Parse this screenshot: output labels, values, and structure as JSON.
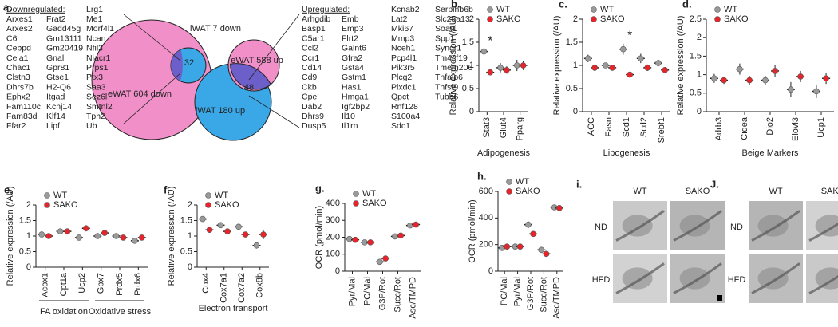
{
  "gene_lists": {
    "label": "a.",
    "downregulated": {
      "heading": "Downregulated:",
      "columns": [
        [
          "Arxes1",
          "Arxes2",
          "C6",
          "Cebpd",
          "Cela1",
          "Chac1",
          "Clstn3",
          "Dhrs7b",
          "Ephx2",
          "Fam110c",
          "Fam83d",
          "Ffar2"
        ],
        [
          "Frat2",
          "Gadd45g",
          "Gm13111",
          "Gm20419",
          "Gnal",
          "Gpr81",
          "Gtse1",
          "H2-Q6",
          "Itgad",
          "Kcnj14",
          "Klf14",
          "Lipf"
        ],
        [
          "Lrg1",
          "Me1",
          "Morf4l1",
          "Ncan",
          "Nfil3",
          "Niacr1",
          "Prps1",
          "Ptx3",
          "Saa3",
          "Sez6l",
          "Smtnl2",
          "Tph2",
          "Ub"
        ]
      ]
    },
    "upregulated": {
      "heading": "Upregulated:",
      "columns": [
        [
          "Arhgdib",
          "Basp1",
          "C5ar1",
          "Ccl2",
          "Ccr1",
          "Cd14",
          "Cd9",
          "Ckb",
          "Cpe",
          "Dab2",
          "Dhrs9",
          "Dusp5"
        ],
        [
          "Emb",
          "Emp3",
          "Flrt2",
          "Galnt6",
          "Gfra2",
          "Gsta4",
          "Gstm1",
          "Has1",
          "Hmga1",
          "Igf2bp2",
          "Il10",
          "Il1rn"
        ],
        [
          "Kcnab2",
          "Lat2",
          "Mki67",
          "Mmp3",
          "Nceh1",
          "Pcp4l1",
          "Pik3r5",
          "Plcg2",
          "Plxdc1",
          "Qpct",
          "Rnf128",
          "S100a4",
          "Sdc1"
        ],
        [
          "Serpinb6b",
          "Slc25a13",
          "Soat1",
          "Spp1",
          "Syngr1",
          "Tm4sf19",
          "Tmem206",
          "Tnfaip6",
          "Tnfsf9",
          "Tubb6"
        ]
      ]
    }
  },
  "venn": {
    "down": {
      "big": "eWAT 604 down",
      "small": "iWAT 7 down",
      "overlap": 32
    },
    "up": {
      "small": "eWAT 588 up",
      "big": "iWAT 180 up",
      "overlap": 48
    }
  },
  "chart_data": [
    {
      "type": "dot",
      "label": "b.",
      "ylabel": "Relative expression (/AU)",
      "xlabel": "Adipogenesis",
      "categories": [
        "Stat3",
        "Glut4",
        "Pparg"
      ],
      "ylim": [
        0,
        2
      ],
      "yticks": [
        0,
        0.5,
        1,
        1.5,
        2
      ],
      "significance": [
        "*",
        null,
        null
      ],
      "series": [
        {
          "name": "WT",
          "color": "#9a9a9a",
          "values": [
            1.3,
            0.95,
            1.0
          ],
          "errors": [
            0.05,
            0.1,
            0.12
          ]
        },
        {
          "name": "SAKO",
          "color": "#e8242a",
          "values": [
            0.85,
            0.9,
            1.0
          ],
          "errors": [
            0.05,
            0.08,
            0.1
          ]
        }
      ]
    },
    {
      "type": "dot",
      "label": "c.",
      "ylabel": "Relative expression (/AU)",
      "xlabel": "Lipogenesis",
      "categories": [
        "ACC",
        "Fasn",
        "Scd1",
        "Scd2",
        "Srebf1"
      ],
      "ylim": [
        0,
        2
      ],
      "yticks": [
        0,
        0.5,
        1,
        1.5,
        2
      ],
      "significance": [
        null,
        null,
        "*",
        null,
        null
      ],
      "series": [
        {
          "name": "WT",
          "color": "#9a9a9a",
          "values": [
            1.15,
            1.0,
            1.35,
            1.15,
            1.05
          ],
          "errors": [
            0.08,
            0.06,
            0.12,
            0.1,
            0.07
          ]
        },
        {
          "name": "SAKO",
          "color": "#e8242a",
          "values": [
            0.95,
            0.95,
            0.8,
            0.95,
            0.9
          ],
          "errors": [
            0.07,
            0.06,
            0.06,
            0.07,
            0.05
          ]
        }
      ]
    },
    {
      "type": "dot",
      "label": "d.",
      "ylabel": "Relative expression (/AU)",
      "xlabel": "Beige Markers",
      "categories": [
        "Adrb3",
        "Cidea",
        "Dio2",
        "Elovl3",
        "Ucp1"
      ],
      "ylim": [
        0,
        2.5
      ],
      "yticks": [
        0,
        0.5,
        1,
        1.5,
        2,
        2.5
      ],
      "series": [
        {
          "name": "WT",
          "color": "#9a9a9a",
          "values": [
            0.9,
            1.15,
            0.85,
            0.6,
            0.55
          ],
          "errors": [
            0.12,
            0.15,
            0.12,
            0.2,
            0.18
          ]
        },
        {
          "name": "SAKO",
          "color": "#e8242a",
          "values": [
            0.85,
            0.85,
            1.1,
            0.95,
            0.9
          ],
          "errors": [
            0.1,
            0.12,
            0.15,
            0.15,
            0.15
          ]
        }
      ]
    },
    {
      "type": "dot",
      "label": "e.",
      "ylabel": "Relative expression (/AU)",
      "xlabel": [
        "FA oxidation",
        "Oxidative stress"
      ],
      "categories": [
        "Acox1",
        "Cpt1a",
        "Ucp2",
        "Gpx7",
        "Prdx5",
        "Prdx6"
      ],
      "ylim": [
        0,
        2
      ],
      "yticks": [
        0,
        0.5,
        1,
        1.5,
        2
      ],
      "series": [
        {
          "name": "WT",
          "color": "#9a9a9a",
          "values": [
            1.05,
            1.15,
            0.95,
            1.0,
            1.0,
            0.85
          ],
          "errors": [
            0.08,
            0.06,
            0.07,
            0.06,
            0.07,
            0.05
          ]
        },
        {
          "name": "SAKO",
          "color": "#e8242a",
          "values": [
            1.0,
            1.15,
            1.25,
            1.1,
            0.95,
            0.95
          ],
          "errors": [
            0.08,
            0.07,
            0.1,
            0.08,
            0.08,
            0.07
          ]
        }
      ]
    },
    {
      "type": "dot",
      "label": "f.",
      "ylabel": "Relative expression (/AU)",
      "xlabel": "Electron transport",
      "categories": [
        "Cox4",
        "Cox7a1",
        "Cox7a2",
        "Cox8b"
      ],
      "ylim": [
        0,
        2
      ],
      "yticks": [
        0,
        0.5,
        1,
        1.5,
        2
      ],
      "series": [
        {
          "name": "WT",
          "color": "#9a9a9a",
          "values": [
            1.55,
            1.35,
            1.3,
            0.7
          ],
          "errors": [
            0.07,
            0.08,
            0.07,
            0.1
          ]
        },
        {
          "name": "SAKO",
          "color": "#e8242a",
          "values": [
            1.2,
            1.15,
            1.05,
            1.05
          ],
          "errors": [
            0.06,
            0.07,
            0.05,
            0.15
          ]
        }
      ]
    },
    {
      "type": "dot",
      "label": "g.",
      "ylabel": "OCR (pmol/min)",
      "categories": [
        "Pyr/Mal",
        "PC/Mal",
        "G3P/Rot",
        "Succ/Rot",
        "Asc/TMPD"
      ],
      "ylim": [
        0,
        400
      ],
      "yticks": [
        0,
        100,
        200,
        300,
        400
      ],
      "series": [
        {
          "name": "WT",
          "color": "#9a9a9a",
          "values": [
            190,
            170,
            55,
            205,
            270
          ],
          "errors": [
            8,
            6,
            5,
            8,
            15
          ]
        },
        {
          "name": "SAKO",
          "color": "#e8242a",
          "values": [
            185,
            170,
            75,
            210,
            275
          ],
          "errors": [
            6,
            5,
            6,
            7,
            10
          ]
        }
      ]
    },
    {
      "type": "dot",
      "label": "h.",
      "ylabel": "OCR (pmol/min)",
      "categories": [
        "PC/Mal",
        "Pyr/Mal",
        "G3P/Rot",
        "Succ/Rot",
        "Asc/TMPD"
      ],
      "ylim": [
        0,
        600
      ],
      "yticks": [
        0,
        200,
        400,
        600
      ],
      "series": [
        {
          "name": "WT",
          "color": "#9a9a9a",
          "values": [
            175,
            185,
            350,
            160,
            480
          ],
          "errors": [
            8,
            10,
            25,
            8,
            10
          ]
        },
        {
          "name": "SAKO",
          "color": "#e8242a",
          "values": [
            185,
            185,
            280,
            130,
            475
          ],
          "errors": [
            8,
            8,
            15,
            6,
            8
          ]
        }
      ]
    }
  ],
  "images": [
    {
      "label": "i.",
      "columns": [
        "WT",
        "SAKO"
      ],
      "rows": [
        "ND",
        "HFD"
      ]
    },
    {
      "label": "J.",
      "columns": [
        "WT",
        "SAKO"
      ],
      "rows": [
        "ND",
        "HFD"
      ]
    }
  ]
}
